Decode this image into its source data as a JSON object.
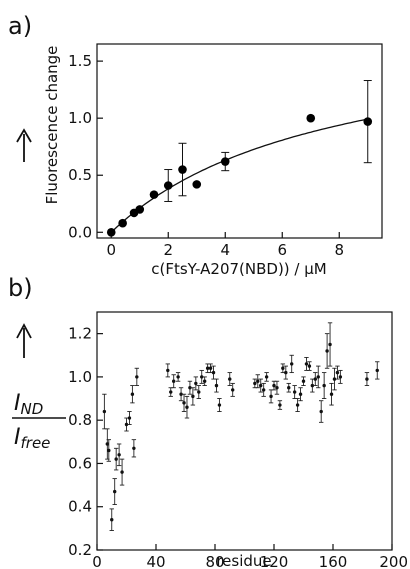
{
  "chart_data": [
    {
      "type": "scatter",
      "panel_label": "a)",
      "xlabel": "c(FtsY-A207(NBD)) / µM",
      "ylabel": "Fluorescence change",
      "xlim": [
        -0.5,
        9.5
      ],
      "ylim": [
        -0.05,
        1.65
      ],
      "xticks": [
        "0",
        "2",
        "4",
        "6",
        "8"
      ],
      "yticks": [
        "0.0",
        "0.5",
        "1.0",
        "1.5"
      ],
      "points": [
        {
          "x": 0,
          "y": 0.0,
          "err": 0
        },
        {
          "x": 0.4,
          "y": 0.08,
          "err": 0
        },
        {
          "x": 0.8,
          "y": 0.17,
          "err": 0
        },
        {
          "x": 1.0,
          "y": 0.2,
          "err": 0
        },
        {
          "x": 1.5,
          "y": 0.33,
          "err": 0
        },
        {
          "x": 2.0,
          "y": 0.41,
          "err": 0.14
        },
        {
          "x": 2.5,
          "y": 0.55,
          "err": 0.23
        },
        {
          "x": 3.0,
          "y": 0.42,
          "err": 0
        },
        {
          "x": 4.0,
          "y": 0.62,
          "err": 0.08
        },
        {
          "x": 7.0,
          "y": 1.0,
          "err": 0
        },
        {
          "x": 9.0,
          "y": 0.97,
          "err": 0.36
        }
      ],
      "fit_curve": {
        "type": "saturation",
        "a": 1.83,
        "kd": 7.6
      },
      "grid": false
    },
    {
      "type": "scatter",
      "panel_label": "b)",
      "xlabel": "residue",
      "ylabel_main": "I",
      "ylabel_main_sub": "ND",
      "ylabel_denom": "I",
      "ylabel_denom_sub": "free",
      "xlim": [
        0,
        200
      ],
      "ylim": [
        0.2,
        1.3
      ],
      "xticks": [
        "0",
        "40",
        "80",
        "120",
        "160",
        "200"
      ],
      "yticks": [
        "0.2",
        "0.4",
        "0.6",
        "0.8",
        "1.0",
        "1.2"
      ],
      "points": [
        {
          "x": 5,
          "y": 0.84,
          "err": 0.08
        },
        {
          "x": 7,
          "y": 0.69,
          "err": 0.07
        },
        {
          "x": 8,
          "y": 0.66,
          "err": 0.05
        },
        {
          "x": 10,
          "y": 0.34,
          "err": 0.05
        },
        {
          "x": 12,
          "y": 0.47,
          "err": 0.06
        },
        {
          "x": 13,
          "y": 0.62,
          "err": 0.05
        },
        {
          "x": 15,
          "y": 0.64,
          "err": 0.05
        },
        {
          "x": 17,
          "y": 0.56,
          "err": 0.06
        },
        {
          "x": 20,
          "y": 0.78,
          "err": 0.03
        },
        {
          "x": 22,
          "y": 0.81,
          "err": 0.03
        },
        {
          "x": 24,
          "y": 0.92,
          "err": 0.04
        },
        {
          "x": 25,
          "y": 0.67,
          "err": 0.04
        },
        {
          "x": 27,
          "y": 1.0,
          "err": 0.04
        },
        {
          "x": 48,
          "y": 1.03,
          "err": 0.03
        },
        {
          "x": 50,
          "y": 0.93,
          "err": 0.02
        },
        {
          "x": 52,
          "y": 0.98,
          "err": 0.03
        },
        {
          "x": 55,
          "y": 1.0,
          "err": 0.02
        },
        {
          "x": 57,
          "y": 0.92,
          "err": 0.03
        },
        {
          "x": 59,
          "y": 0.88,
          "err": 0.04
        },
        {
          "x": 61,
          "y": 0.86,
          "err": 0.05
        },
        {
          "x": 63,
          "y": 0.95,
          "err": 0.03
        },
        {
          "x": 65,
          "y": 0.91,
          "err": 0.04
        },
        {
          "x": 67,
          "y": 0.97,
          "err": 0.03
        },
        {
          "x": 69,
          "y": 0.93,
          "err": 0.03
        },
        {
          "x": 71,
          "y": 1.0,
          "err": 0.03
        },
        {
          "x": 73,
          "y": 0.98,
          "err": 0.02
        },
        {
          "x": 75,
          "y": 1.04,
          "err": 0.02
        },
        {
          "x": 77,
          "y": 1.04,
          "err": 0.02
        },
        {
          "x": 79,
          "y": 1.02,
          "err": 0.03
        },
        {
          "x": 81,
          "y": 0.96,
          "err": 0.03
        },
        {
          "x": 83,
          "y": 0.87,
          "err": 0.03
        },
        {
          "x": 90,
          "y": 0.99,
          "err": 0.03
        },
        {
          "x": 92,
          "y": 0.94,
          "err": 0.03
        },
        {
          "x": 107,
          "y": 0.97,
          "err": 0.02
        },
        {
          "x": 109,
          "y": 0.98,
          "err": 0.03
        },
        {
          "x": 111,
          "y": 0.96,
          "err": 0.03
        },
        {
          "x": 113,
          "y": 0.94,
          "err": 0.03
        },
        {
          "x": 115,
          "y": 1.0,
          "err": 0.02
        },
        {
          "x": 118,
          "y": 0.91,
          "err": 0.03
        },
        {
          "x": 120,
          "y": 0.96,
          "err": 0.02
        },
        {
          "x": 122,
          "y": 0.95,
          "err": 0.03
        },
        {
          "x": 124,
          "y": 0.87,
          "err": 0.02
        },
        {
          "x": 126,
          "y": 1.04,
          "err": 0.02
        },
        {
          "x": 128,
          "y": 1.02,
          "err": 0.03
        },
        {
          "x": 130,
          "y": 0.95,
          "err": 0.02
        },
        {
          "x": 132,
          "y": 1.06,
          "err": 0.04
        },
        {
          "x": 134,
          "y": 0.93,
          "err": 0.03
        },
        {
          "x": 136,
          "y": 0.87,
          "err": 0.03
        },
        {
          "x": 138,
          "y": 0.92,
          "err": 0.03
        },
        {
          "x": 140,
          "y": 0.98,
          "err": 0.02
        },
        {
          "x": 142,
          "y": 1.06,
          "err": 0.03
        },
        {
          "x": 144,
          "y": 1.05,
          "err": 0.02
        },
        {
          "x": 146,
          "y": 0.96,
          "err": 0.03
        },
        {
          "x": 148,
          "y": 0.99,
          "err": 0.03
        },
        {
          "x": 150,
          "y": 1.0,
          "err": 0.05
        },
        {
          "x": 152,
          "y": 0.84,
          "err": 0.05
        },
        {
          "x": 154,
          "y": 0.96,
          "err": 0.06
        },
        {
          "x": 156,
          "y": 1.12,
          "err": 0.08
        },
        {
          "x": 158,
          "y": 1.15,
          "err": 0.1
        },
        {
          "x": 159,
          "y": 0.92,
          "err": 0.05
        },
        {
          "x": 161,
          "y": 0.99,
          "err": 0.05
        },
        {
          "x": 163,
          "y": 1.02,
          "err": 0.03
        },
        {
          "x": 165,
          "y": 1.0,
          "err": 0.03
        },
        {
          "x": 183,
          "y": 0.99,
          "err": 0.03
        },
        {
          "x": 190,
          "y": 1.03,
          "err": 0.04
        }
      ],
      "grid": false
    }
  ]
}
